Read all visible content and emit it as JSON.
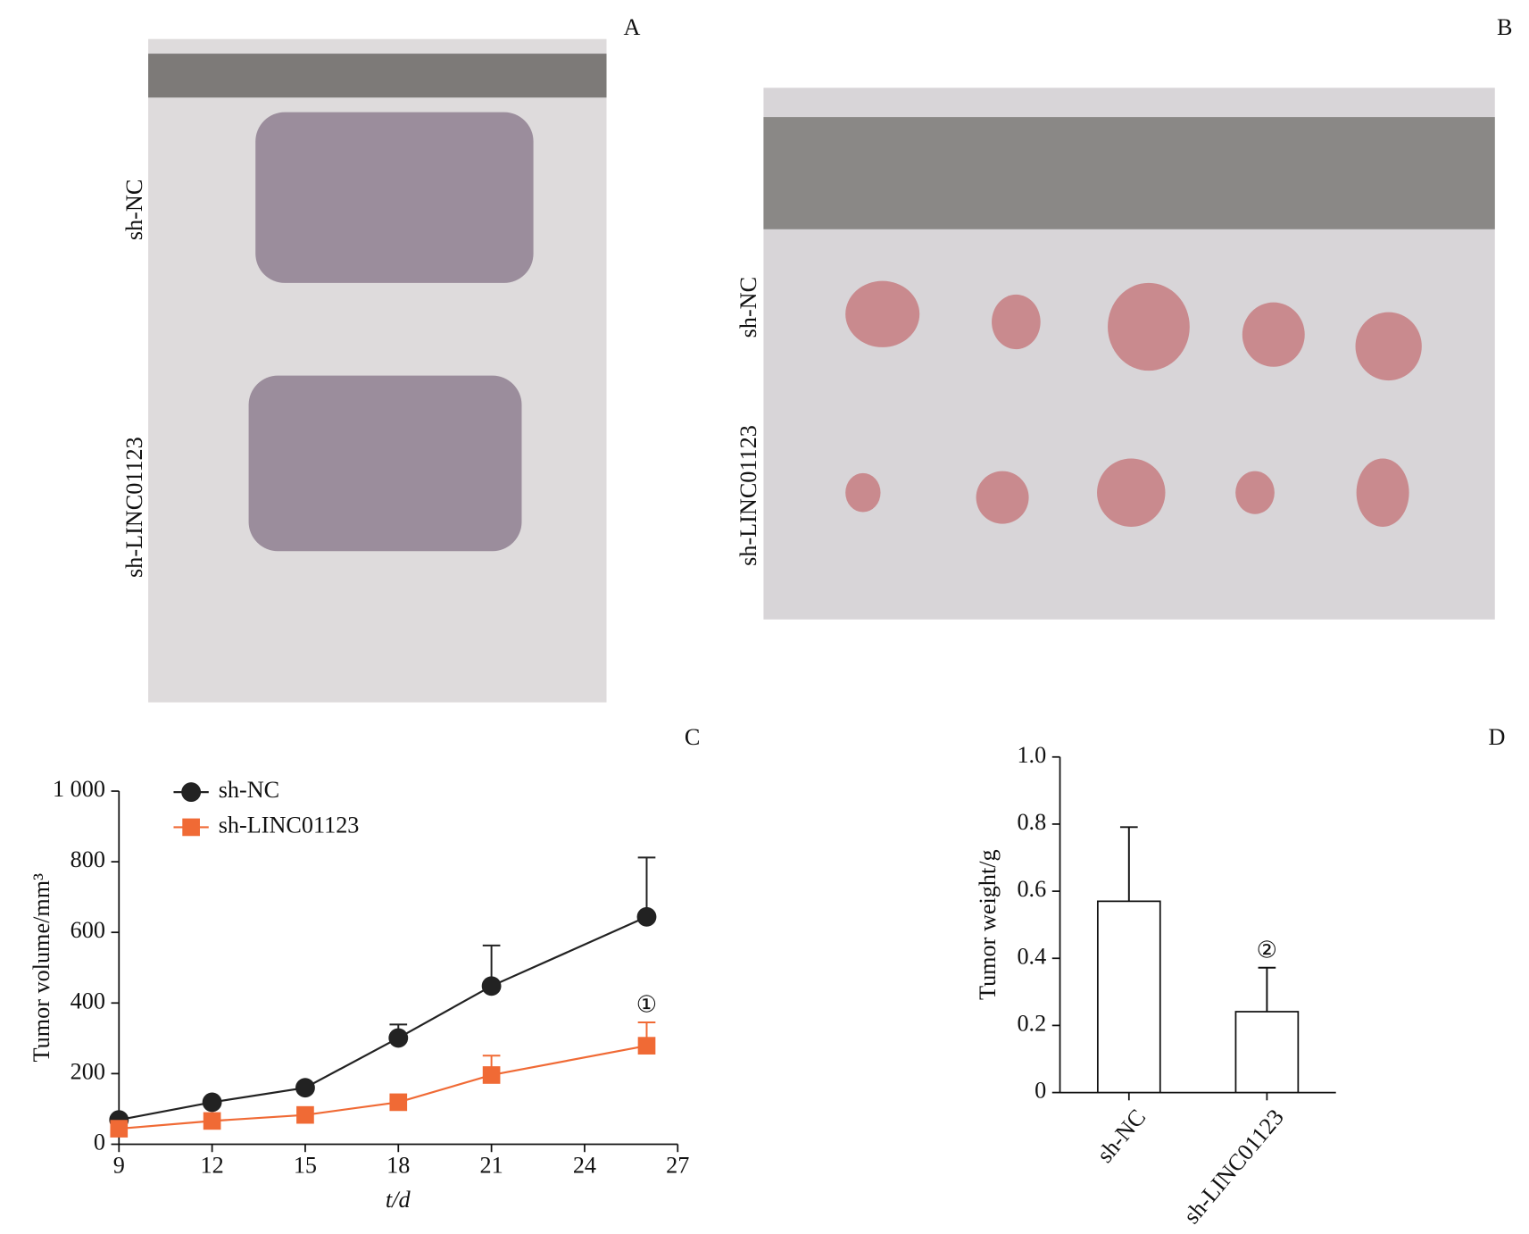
{
  "panels": [
    {
      "label": "A",
      "groups": [
        "sh-NC",
        "sh-LINC01123"
      ]
    },
    {
      "label": "B",
      "groups": [
        "sh-NC",
        "sh-LINC01123"
      ]
    }
  ],
  "chart_data": [
    {
      "type": "line",
      "label": "C",
      "x_label": "t/d",
      "y_label": "Tumor volume/mm³",
      "xlim": [
        9,
        27
      ],
      "xticks": [
        9,
        12,
        15,
        18,
        21,
        24,
        27
      ],
      "ylim": [
        0,
        1000
      ],
      "yticks": [
        0,
        200,
        400,
        600,
        {
          "value": 1000,
          "label": "1 000"
        },
        800
      ],
      "x": [
        9,
        12,
        15,
        18,
        21,
        26
      ],
      "legend": "upper left",
      "series": [
        {
          "name": "sh-NC",
          "color": "#222222",
          "marker": "circle",
          "values": [
            69,
            119,
            160,
            301,
            448,
            644
          ],
          "errors": [
            null,
            null,
            null,
            38,
            115,
            168
          ]
        },
        {
          "name": "sh-LINC01123",
          "color": "#f06a35",
          "marker": "square",
          "values": [
            44,
            66,
            83,
            119,
            196,
            279
          ],
          "errors": [
            null,
            null,
            null,
            8,
            55,
            66
          ],
          "annotations": [
            null,
            null,
            null,
            null,
            null,
            "①"
          ]
        }
      ]
    },
    {
      "type": "bar",
      "label": "D",
      "y_label": "Tumor weight/g",
      "categories": [
        "sh-NC",
        "sh-LINC01123"
      ],
      "values": [
        0.57,
        0.241
      ],
      "errors": [
        0.221,
        0.131
      ],
      "annotations": [
        null,
        "②"
      ],
      "color": "#ffffff",
      "ylim": [
        0,
        1
      ],
      "yticks": [
        0,
        0.2,
        0.4,
        0.6,
        0.8,
        {
          "value": 1,
          "label": "1.0"
        }
      ]
    }
  ]
}
